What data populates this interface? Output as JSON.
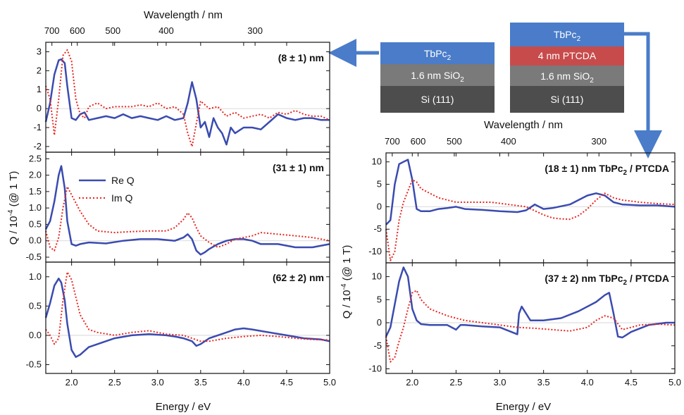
{
  "colors": {
    "re": "#3a4bb0",
    "im": "#e8251f",
    "sio2": "#7a7a7a",
    "si": "#4d4d4d",
    "tbpc": "#4a7cc9",
    "ptcda": "#c84b4b",
    "arrow": "#4a7cc9",
    "frame": "#111111"
  },
  "labels": {
    "energy": "Energy / eV",
    "wavelength": "Wavelength / nm",
    "q_prefix": "Q / 10",
    "q_exp": "-4",
    "q_suffix": " (@ 1 T)",
    "sub2": "2"
  },
  "stacks": [
    {
      "layers": [
        {
          "text": "TbPc",
          "sub": "2",
          "color": "tbpc"
        },
        {
          "text": "1.6 nm SiO",
          "sub": "2",
          "color": "sio2"
        },
        {
          "text": "Si (111)",
          "sub": "",
          "color": "si"
        }
      ]
    },
    {
      "layers": [
        {
          "text": "TbPc",
          "sub": "2",
          "color": "tbpc"
        },
        {
          "text": "4 nm PTCDA",
          "sub": "",
          "color": "ptcda"
        },
        {
          "text": "1.6 nm SiO",
          "sub": "2",
          "color": "sio2"
        },
        {
          "text": "Si (111)",
          "sub": "",
          "color": "si"
        }
      ]
    }
  ],
  "chart_data": [
    {
      "type": "line",
      "panel_label": "(8 ± 1) nm",
      "xlabel": "Energy / eV",
      "xlim": [
        1.7,
        5.0
      ],
      "ylim": [
        -2.3,
        3.5
      ],
      "yticks": [
        -2,
        -1,
        0,
        1,
        2,
        3
      ],
      "top_axis": {
        "label": "Wavelength / nm",
        "ticks": [
          700,
          600,
          500,
          400,
          300
        ]
      },
      "series": [
        {
          "name": "Re Q",
          "style": "solid",
          "x": [
            1.7,
            1.75,
            1.8,
            1.85,
            1.88,
            1.92,
            1.95,
            2.0,
            2.05,
            2.1,
            2.15,
            2.2,
            2.3,
            2.4,
            2.5,
            2.6,
            2.7,
            2.8,
            2.9,
            3.0,
            3.1,
            3.2,
            3.3,
            3.35,
            3.4,
            3.45,
            3.5,
            3.55,
            3.6,
            3.65,
            3.7,
            3.75,
            3.8,
            3.85,
            3.9,
            4.0,
            4.1,
            4.2,
            4.3,
            4.4,
            4.5,
            4.6,
            4.7,
            4.8,
            4.9,
            5.0
          ],
          "y": [
            -0.7,
            0.3,
            1.8,
            2.55,
            2.6,
            2.4,
            1.2,
            -0.5,
            -0.6,
            -0.3,
            -0.2,
            -0.6,
            -0.5,
            -0.4,
            -0.5,
            -0.3,
            -0.5,
            -0.4,
            -0.5,
            -0.6,
            -0.4,
            -0.6,
            -0.5,
            0.3,
            1.4,
            0.5,
            -1.0,
            -0.7,
            -1.5,
            -0.5,
            -1.0,
            -1.3,
            -1.9,
            -1.0,
            -1.3,
            -1.0,
            -1.0,
            -1.1,
            -0.7,
            -0.3,
            -0.5,
            -0.6,
            -0.5,
            -0.5,
            -0.6,
            -0.6
          ]
        },
        {
          "name": "Im Q",
          "style": "dotted",
          "x": [
            1.7,
            1.75,
            1.8,
            1.85,
            1.9,
            1.95,
            2.0,
            2.05,
            2.1,
            2.15,
            2.2,
            2.3,
            2.4,
            2.5,
            2.6,
            2.7,
            2.8,
            2.9,
            3.0,
            3.1,
            3.2,
            3.3,
            3.35,
            3.4,
            3.45,
            3.5,
            3.6,
            3.7,
            3.8,
            3.9,
            4.0,
            4.1,
            4.2,
            4.3,
            4.4,
            4.5,
            4.6,
            4.7,
            4.8,
            4.9,
            5.0
          ],
          "y": [
            1.2,
            0.5,
            -1.4,
            0.5,
            2.8,
            3.1,
            2.5,
            0.5,
            -0.3,
            -0.5,
            0.1,
            0.3,
            0.0,
            0.1,
            0.1,
            0.1,
            0.2,
            0.1,
            0.3,
            0.0,
            0.1,
            -0.3,
            -1.3,
            -2.0,
            -0.8,
            0.4,
            0.0,
            0.1,
            -0.4,
            -0.2,
            -0.5,
            -0.4,
            -0.3,
            -0.5,
            -0.2,
            -0.3,
            -0.1,
            -0.3,
            -0.4,
            -0.4,
            -0.6
          ]
        }
      ]
    },
    {
      "type": "line",
      "panel_label": "(31 ± 1) nm",
      "xlabel": "Energy / eV",
      "xlim": [
        1.7,
        5.0
      ],
      "ylim": [
        -0.65,
        2.7
      ],
      "yticks": [
        -0.5,
        0.0,
        0.5,
        1.0,
        1.5,
        2.0,
        2.5
      ],
      "series": [
        {
          "name": "Re Q",
          "style": "solid",
          "x": [
            1.7,
            1.75,
            1.8,
            1.85,
            1.88,
            1.92,
            1.95,
            2.0,
            2.05,
            2.1,
            2.2,
            2.4,
            2.6,
            2.8,
            3.0,
            3.2,
            3.3,
            3.35,
            3.4,
            3.45,
            3.5,
            3.55,
            3.6,
            3.7,
            3.8,
            3.9,
            4.0,
            4.1,
            4.2,
            4.4,
            4.6,
            4.8,
            5.0
          ],
          "y": [
            0.35,
            0.6,
            1.2,
            2.0,
            2.28,
            1.6,
            0.6,
            -0.1,
            -0.15,
            -0.1,
            -0.05,
            -0.08,
            0.0,
            0.05,
            0.05,
            0.0,
            0.1,
            0.2,
            0.05,
            -0.3,
            -0.42,
            -0.35,
            -0.25,
            -0.1,
            0.0,
            0.05,
            0.05,
            0.0,
            -0.1,
            -0.1,
            -0.2,
            -0.2,
            -0.1
          ]
        },
        {
          "name": "Im Q",
          "style": "dotted",
          "x": [
            1.7,
            1.75,
            1.8,
            1.85,
            1.9,
            1.95,
            2.0,
            2.1,
            2.2,
            2.3,
            2.5,
            2.7,
            2.9,
            3.1,
            3.2,
            3.3,
            3.35,
            3.4,
            3.45,
            3.5,
            3.6,
            3.7,
            3.8,
            3.9,
            4.0,
            4.1,
            4.2,
            4.4,
            4.6,
            4.8,
            5.0
          ],
          "y": [
            0.3,
            -0.2,
            -0.3,
            0.1,
            1.0,
            1.65,
            1.4,
            0.9,
            0.5,
            0.3,
            0.25,
            0.28,
            0.3,
            0.3,
            0.4,
            0.65,
            0.85,
            0.7,
            0.4,
            0.15,
            -0.05,
            -0.2,
            -0.1,
            0.05,
            0.1,
            0.15,
            0.25,
            0.2,
            0.15,
            0.1,
            0.0
          ]
        }
      ]
    },
    {
      "type": "line",
      "panel_label": "(62 ± 2) nm",
      "xlabel": "Energy / eV",
      "xlim": [
        1.7,
        5.0
      ],
      "ylim": [
        -0.65,
        1.25
      ],
      "yticks": [
        -0.5,
        0.0,
        0.5,
        1.0
      ],
      "series": [
        {
          "name": "Re Q",
          "style": "solid",
          "x": [
            1.7,
            1.75,
            1.8,
            1.85,
            1.88,
            1.92,
            1.95,
            2.0,
            2.05,
            2.1,
            2.2,
            2.3,
            2.5,
            2.7,
            2.9,
            3.1,
            3.2,
            3.3,
            3.4,
            3.45,
            3.5,
            3.6,
            3.8,
            3.9,
            4.0,
            4.1,
            4.3,
            4.5,
            4.7,
            4.9,
            5.0
          ],
          "y": [
            0.3,
            0.55,
            0.85,
            0.97,
            0.9,
            0.6,
            0.2,
            -0.25,
            -0.37,
            -0.33,
            -0.2,
            -0.15,
            -0.05,
            0.0,
            0.02,
            0.0,
            -0.02,
            -0.05,
            -0.1,
            -0.18,
            -0.15,
            -0.05,
            0.05,
            0.1,
            0.12,
            0.1,
            0.05,
            0.0,
            -0.05,
            -0.07,
            -0.1
          ]
        },
        {
          "name": "Im Q",
          "style": "dotted",
          "x": [
            1.7,
            1.75,
            1.8,
            1.85,
            1.9,
            1.95,
            2.0,
            2.05,
            2.1,
            2.2,
            2.3,
            2.5,
            2.7,
            2.9,
            3.1,
            3.3,
            3.4,
            3.5,
            3.6,
            3.8,
            4.0,
            4.2,
            4.4,
            4.6,
            4.8,
            5.0
          ],
          "y": [
            0.1,
            0.0,
            -0.15,
            -0.05,
            0.6,
            1.08,
            0.95,
            0.65,
            0.35,
            0.1,
            0.05,
            0.0,
            0.05,
            0.08,
            0.02,
            0.0,
            -0.05,
            -0.1,
            -0.1,
            -0.05,
            -0.02,
            0.0,
            -0.02,
            -0.05,
            -0.07,
            -0.08
          ]
        }
      ]
    },
    {
      "type": "line",
      "panel_label": "(18 ± 1) nm TbPc₂ / PTCDA",
      "xlabel": "Energy / eV",
      "xlim": [
        1.7,
        5.0
      ],
      "ylim": [
        -12.5,
        12
      ],
      "yticks": [
        -10,
        -5,
        0,
        5,
        10
      ],
      "top_axis": {
        "label": "Wavelength / nm",
        "ticks": [
          700,
          600,
          500,
          400,
          300
        ]
      },
      "series": [
        {
          "name": "Re Q",
          "style": "solid",
          "x": [
            1.7,
            1.75,
            1.8,
            1.85,
            1.9,
            1.95,
            2.0,
            2.05,
            2.1,
            2.2,
            2.3,
            2.4,
            2.5,
            2.6,
            2.8,
            3.0,
            3.2,
            3.3,
            3.4,
            3.5,
            3.6,
            3.8,
            3.9,
            4.0,
            4.1,
            4.2,
            4.3,
            4.4,
            4.6,
            4.8,
            5.0
          ],
          "y": [
            -4.0,
            -3.0,
            5.0,
            9.5,
            10.0,
            10.5,
            6.0,
            -0.5,
            -1.0,
            -1.0,
            -0.5,
            -0.3,
            0.0,
            -0.5,
            -0.7,
            -1.0,
            -1.2,
            -0.8,
            0.5,
            -0.5,
            -0.3,
            0.5,
            1.5,
            2.5,
            3.0,
            2.5,
            1.0,
            0.5,
            0.3,
            0.3,
            0.0
          ]
        },
        {
          "name": "Im Q",
          "style": "dotted",
          "x": [
            1.7,
            1.75,
            1.8,
            1.85,
            1.9,
            1.95,
            2.0,
            2.05,
            2.1,
            2.2,
            2.3,
            2.5,
            2.7,
            2.9,
            3.1,
            3.3,
            3.5,
            3.6,
            3.7,
            3.8,
            3.9,
            4.0,
            4.1,
            4.2,
            4.3,
            4.4,
            4.6,
            4.8,
            5.0
          ],
          "y": [
            -5.0,
            -12.0,
            -10.0,
            -3.0,
            1.0,
            3.5,
            6.0,
            5.5,
            4.0,
            3.0,
            2.0,
            1.0,
            1.0,
            1.0,
            0.5,
            0.0,
            -1.8,
            -2.5,
            -2.7,
            -2.8,
            -2.0,
            -0.5,
            1.5,
            3.0,
            2.0,
            1.5,
            1.0,
            0.7,
            0.5
          ]
        }
      ]
    },
    {
      "type": "line",
      "panel_label": "(37 ± 2) nm TbPc₂ / PTCDA",
      "xlabel": "Energy / eV",
      "xlim": [
        1.7,
        5.0
      ],
      "ylim": [
        -11,
        13
      ],
      "yticks": [
        -10,
        -5,
        0,
        5,
        10
      ],
      "series": [
        {
          "name": "Re Q",
          "style": "solid",
          "x": [
            1.7,
            1.75,
            1.8,
            1.85,
            1.9,
            1.95,
            2.0,
            2.05,
            2.1,
            2.2,
            2.4,
            2.5,
            2.55,
            2.6,
            2.8,
            3.0,
            3.2,
            3.22,
            3.25,
            3.3,
            3.35,
            3.4,
            3.5,
            3.7,
            3.9,
            4.1,
            4.2,
            4.25,
            4.3,
            4.35,
            4.4,
            4.5,
            4.7,
            4.9,
            5.0
          ],
          "y": [
            -3.0,
            -1.0,
            4.0,
            9.0,
            12.0,
            10.0,
            3.0,
            0.5,
            -0.3,
            -0.5,
            -0.5,
            -1.5,
            -0.5,
            -0.5,
            -0.8,
            -1.0,
            -2.5,
            2.0,
            3.5,
            2.0,
            0.5,
            0.5,
            0.5,
            1.0,
            2.5,
            4.5,
            6.0,
            6.5,
            2.0,
            -3.0,
            -3.2,
            -2.0,
            -0.5,
            0.0,
            0.0
          ]
        },
        {
          "name": "Im Q",
          "style": "dotted",
          "x": [
            1.7,
            1.75,
            1.8,
            1.85,
            1.9,
            1.95,
            2.0,
            2.05,
            2.1,
            2.2,
            2.4,
            2.6,
            2.8,
            3.0,
            3.2,
            3.4,
            3.6,
            3.8,
            4.0,
            4.1,
            4.2,
            4.3,
            4.4,
            4.5,
            4.6,
            4.8,
            5.0
          ],
          "y": [
            -3.0,
            -8.5,
            -7.5,
            -4.0,
            -1.0,
            3.0,
            6.5,
            7.0,
            5.0,
            3.0,
            1.5,
            0.5,
            0.0,
            -0.5,
            -1.0,
            -1.2,
            -1.5,
            -1.8,
            -1.0,
            0.5,
            1.5,
            1.0,
            -1.5,
            -1.0,
            -0.5,
            -0.3,
            -0.5
          ]
        }
      ]
    }
  ]
}
